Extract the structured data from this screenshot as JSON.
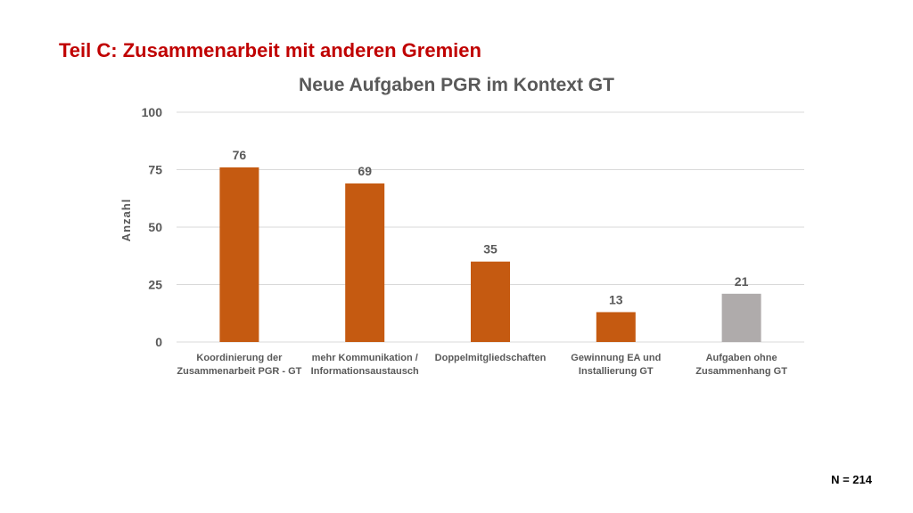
{
  "slide": {
    "title": "Teil C: Zusammenarbeit mit anderen Gremien",
    "note": "N = 214"
  },
  "colors": {
    "bar_primary": "#c55a11",
    "bar_secondary": "#afabab",
    "title_red": "#c00000",
    "text_gray": "#595959",
    "grid": "#d9d9d9"
  },
  "chart_data": {
    "type": "bar",
    "title": "Neue Aufgaben PGR im Kontext GT",
    "xlabel": "",
    "ylabel": "Anzahl",
    "ylim": [
      0,
      100
    ],
    "yticks": [
      0,
      25,
      50,
      75,
      100
    ],
    "grid": true,
    "categories": [
      [
        "Koordinierung der",
        "Zusammenarbeit PGR - GT"
      ],
      [
        "mehr Kommunikation /",
        "Informationsaustausch"
      ],
      [
        "Doppelmitgliedschaften"
      ],
      [
        "Gewinnung EA und",
        "Installierung GT"
      ],
      [
        "Aufgaben ohne",
        "Zusammenhang GT"
      ]
    ],
    "values": [
      76,
      69,
      35,
      13,
      21
    ],
    "bar_colors": [
      "#c55a11",
      "#c55a11",
      "#c55a11",
      "#c55a11",
      "#afabab"
    ],
    "data_labels": true
  }
}
